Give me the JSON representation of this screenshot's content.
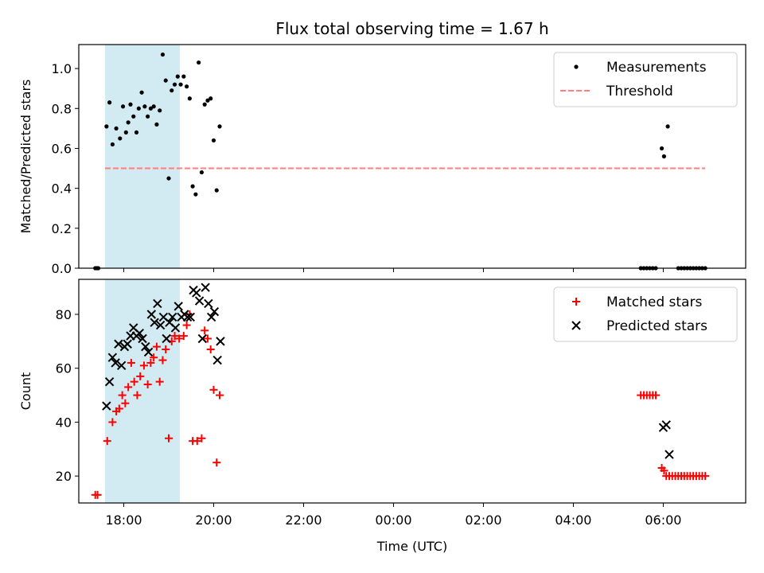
{
  "figure_title": "Flux total observing time = 1.67 h",
  "colors": {
    "measurement": "#000000",
    "threshold": "#ff7f7f",
    "matched": "#ff0000",
    "predicted": "#000000",
    "highlight": "#add8e6"
  },
  "chart_data": [
    {
      "type": "scatter",
      "ylabel": "Matched/Predicted stars",
      "xlabel": "",
      "xlim": [
        "17:00",
        "07:50"
      ],
      "ylim": [
        0,
        1.12
      ],
      "yticks": [
        0.0,
        0.2,
        0.4,
        0.6,
        0.8,
        1.0
      ],
      "yticklabels": [
        "0.0",
        "0.2",
        "0.4",
        "0.6",
        "0.8",
        "1.0"
      ],
      "show_xticklabels": false,
      "highlight_span": [
        "17:35",
        "19:15"
      ],
      "legend": {
        "loc": "upper right",
        "entries": [
          "Measurements",
          "Threshold"
        ]
      },
      "series": [
        {
          "name": "Measurements",
          "marker": "dot",
          "points": [
            [
              "17:22",
              0.0
            ],
            [
              "17:24",
              0.0
            ],
            [
              "17:26",
              0.0
            ],
            [
              "17:37",
              0.71
            ],
            [
              "17:41",
              0.83
            ],
            [
              "17:45",
              0.62
            ],
            [
              "17:50",
              0.7
            ],
            [
              "17:55",
              0.65
            ],
            [
              "17:59",
              0.81
            ],
            [
              "18:03",
              0.68
            ],
            [
              "18:06",
              0.73
            ],
            [
              "18:09",
              0.82
            ],
            [
              "18:13",
              0.76
            ],
            [
              "18:17",
              0.68
            ],
            [
              "18:20",
              0.8
            ],
            [
              "18:24",
              0.88
            ],
            [
              "18:28",
              0.81
            ],
            [
              "18:32",
              0.76
            ],
            [
              "18:36",
              0.8
            ],
            [
              "18:40",
              0.81
            ],
            [
              "18:44",
              0.72
            ],
            [
              "18:48",
              0.79
            ],
            [
              "18:52",
              1.07
            ],
            [
              "18:56",
              0.94
            ],
            [
              "19:00",
              0.45
            ],
            [
              "19:04",
              0.89
            ],
            [
              "19:08",
              0.92
            ],
            [
              "19:12",
              0.96
            ],
            [
              "19:16",
              0.92
            ],
            [
              "19:20",
              0.96
            ],
            [
              "19:24",
              0.91
            ],
            [
              "19:28",
              0.85
            ],
            [
              "19:32",
              0.41
            ],
            [
              "19:36",
              0.37
            ],
            [
              "19:40",
              1.03
            ],
            [
              "19:44",
              0.48
            ],
            [
              "19:48",
              0.82
            ],
            [
              "19:52",
              0.84
            ],
            [
              "19:56",
              0.85
            ],
            [
              "20:00",
              0.64
            ],
            [
              "20:04",
              0.39
            ],
            [
              "20:08",
              0.71
            ],
            [
              "05:30",
              0.0
            ],
            [
              "05:34",
              0.0
            ],
            [
              "05:38",
              0.0
            ],
            [
              "05:42",
              0.0
            ],
            [
              "05:46",
              0.0
            ],
            [
              "05:50",
              0.0
            ],
            [
              "05:58",
              0.6
            ],
            [
              "06:01",
              0.56
            ],
            [
              "06:06",
              0.71
            ],
            [
              "06:20",
              0.0
            ],
            [
              "06:24",
              0.0
            ],
            [
              "06:28",
              0.0
            ],
            [
              "06:32",
              0.0
            ],
            [
              "06:36",
              0.0
            ],
            [
              "06:40",
              0.0
            ],
            [
              "06:44",
              0.0
            ],
            [
              "06:48",
              0.0
            ],
            [
              "06:52",
              0.0
            ],
            [
              "06:56",
              0.0
            ]
          ]
        },
        {
          "name": "Threshold",
          "type": "line",
          "style": "dashed",
          "points": [
            [
              "17:35",
              0.5
            ],
            [
              "06:56",
              0.5
            ]
          ]
        }
      ]
    },
    {
      "type": "scatter",
      "ylabel": "Count",
      "xlabel": "Time (UTC)",
      "xlim": [
        "17:00",
        "07:50"
      ],
      "ylim": [
        10,
        93
      ],
      "yticks": [
        20,
        40,
        60,
        80
      ],
      "yticklabels": [
        "20",
        "40",
        "60",
        "80"
      ],
      "xticks": [
        "18:00",
        "20:00",
        "22:00",
        "00:00",
        "02:00",
        "04:00",
        "06:00"
      ],
      "xticklabels": [
        "18:00",
        "20:00",
        "22:00",
        "00:00",
        "02:00",
        "04:00",
        "06:00"
      ],
      "highlight_span": [
        "17:35",
        "19:15"
      ],
      "legend": {
        "loc": "upper right",
        "entries": [
          "Matched stars",
          "Predicted stars"
        ]
      },
      "series": [
        {
          "name": "Matched stars",
          "marker": "plus",
          "points": [
            [
              "17:22",
              13
            ],
            [
              "17:25",
              13
            ],
            [
              "17:38",
              33
            ],
            [
              "17:45",
              40
            ],
            [
              "17:50",
              44
            ],
            [
              "17:54",
              45
            ],
            [
              "17:58",
              50
            ],
            [
              "18:02",
              47
            ],
            [
              "18:06",
              53
            ],
            [
              "18:10",
              62
            ],
            [
              "18:14",
              55
            ],
            [
              "18:18",
              50
            ],
            [
              "18:22",
              57
            ],
            [
              "18:27",
              61
            ],
            [
              "18:32",
              54
            ],
            [
              "18:36",
              62
            ],
            [
              "18:40",
              64
            ],
            [
              "18:44",
              68
            ],
            [
              "18:48",
              55
            ],
            [
              "18:52",
              63
            ],
            [
              "18:56",
              67
            ],
            [
              "19:00",
              34
            ],
            [
              "19:04",
              70
            ],
            [
              "19:08",
              72
            ],
            [
              "19:14",
              71
            ],
            [
              "19:20",
              72
            ],
            [
              "19:24",
              76
            ],
            [
              "19:28",
              80
            ],
            [
              "19:32",
              33
            ],
            [
              "19:38",
              33
            ],
            [
              "19:44",
              34
            ],
            [
              "19:48",
              74
            ],
            [
              "19:52",
              71
            ],
            [
              "19:56",
              67
            ],
            [
              "20:00",
              52
            ],
            [
              "20:04",
              25
            ],
            [
              "20:08",
              50
            ],
            [
              "05:30",
              50
            ],
            [
              "05:34",
              50
            ],
            [
              "05:38",
              50
            ],
            [
              "05:42",
              50
            ],
            [
              "05:46",
              50
            ],
            [
              "05:50",
              50
            ],
            [
              "05:58",
              23
            ],
            [
              "06:01",
              22
            ],
            [
              "06:04",
              20
            ],
            [
              "06:08",
              20
            ],
            [
              "06:12",
              20
            ],
            [
              "06:16",
              20
            ],
            [
              "06:20",
              20
            ],
            [
              "06:24",
              20
            ],
            [
              "06:28",
              20
            ],
            [
              "06:32",
              20
            ],
            [
              "06:36",
              20
            ],
            [
              "06:40",
              20
            ],
            [
              "06:44",
              20
            ],
            [
              "06:48",
              20
            ],
            [
              "06:52",
              20
            ],
            [
              "06:56",
              20
            ]
          ]
        },
        {
          "name": "Predicted stars",
          "marker": "x",
          "points": [
            [
              "17:37",
              46
            ],
            [
              "17:41",
              55
            ],
            [
              "17:45",
              64
            ],
            [
              "17:49",
              62
            ],
            [
              "17:53",
              69
            ],
            [
              "17:57",
              61
            ],
            [
              "18:01",
              68
            ],
            [
              "18:05",
              69
            ],
            [
              "18:09",
              72
            ],
            [
              "18:13",
              75
            ],
            [
              "18:17",
              72
            ],
            [
              "18:21",
              73
            ],
            [
              "18:25",
              71
            ],
            [
              "18:29",
              68
            ],
            [
              "18:33",
              66
            ],
            [
              "18:37",
              80
            ],
            [
              "18:41",
              77
            ],
            [
              "18:45",
              84
            ],
            [
              "18:49",
              76
            ],
            [
              "18:53",
              79
            ],
            [
              "18:57",
              71
            ],
            [
              "19:01",
              77
            ],
            [
              "19:05",
              79
            ],
            [
              "19:09",
              75
            ],
            [
              "19:13",
              83
            ],
            [
              "19:17",
              79
            ],
            [
              "19:21",
              80
            ],
            [
              "19:25",
              79
            ],
            [
              "19:29",
              79
            ],
            [
              "19:33",
              89
            ],
            [
              "19:37",
              88
            ],
            [
              "19:41",
              85
            ],
            [
              "19:45",
              71
            ],
            [
              "19:49",
              90
            ],
            [
              "19:53",
              84
            ],
            [
              "19:57",
              79
            ],
            [
              "20:01",
              81
            ],
            [
              "20:05",
              63
            ],
            [
              "20:09",
              70
            ],
            [
              "06:00",
              38
            ],
            [
              "06:04",
              39
            ],
            [
              "06:08",
              28
            ]
          ]
        }
      ]
    }
  ]
}
